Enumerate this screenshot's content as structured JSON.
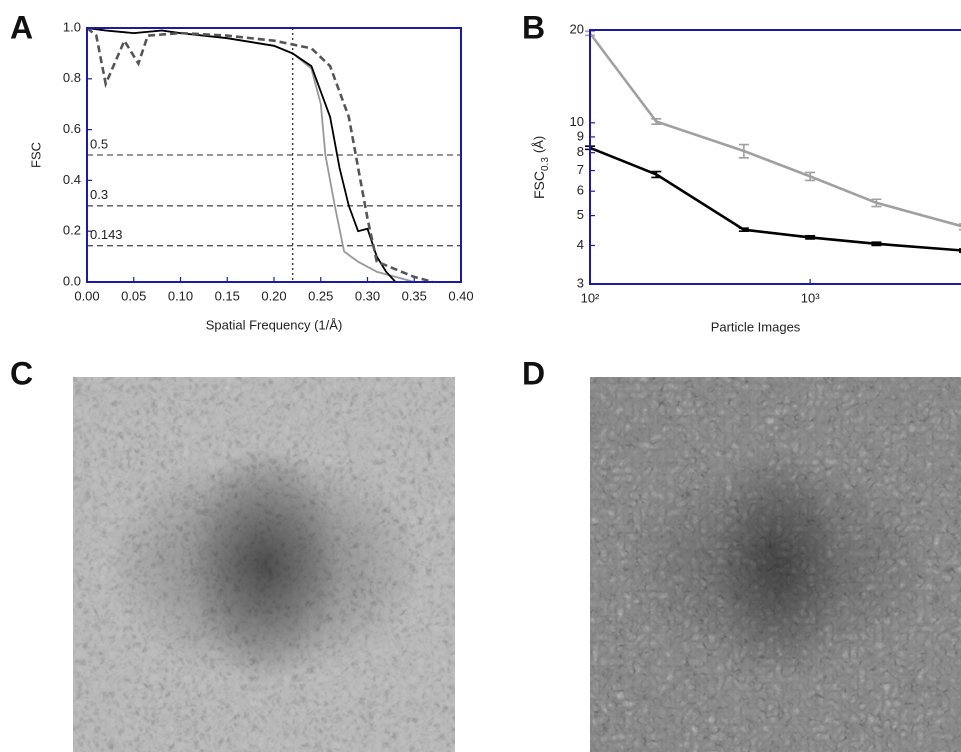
{
  "chart_data": [
    {
      "type": "line",
      "panel_label": "A",
      "x_label": "Spatial Frequency (1/Å)",
      "y_label": "FSC",
      "xlim": [
        0,
        0.4
      ],
      "ylim": [
        0,
        1
      ],
      "xticks": [
        {
          "value": 0,
          "label": "0.00"
        },
        0.05,
        {
          "value": 0.1,
          "label": "0.10"
        },
        0.15,
        {
          "value": 0.2,
          "label": "0.20"
        },
        0.25,
        {
          "value": 0.3,
          "label": "0.30"
        },
        0.35,
        {
          "value": 0.4,
          "label": "0.40"
        }
      ],
      "yticks": [
        {
          "value": 0,
          "label": "0.0"
        },
        0.2,
        0.4,
        0.6,
        0.8,
        {
          "value": 1,
          "label": "1.0"
        }
      ],
      "hlines": [
        0.5,
        0.3,
        0.143
      ],
      "vline": 0.22,
      "series": [
        {
          "color": "#999999",
          "dash": false,
          "x": [
            0,
            0.02,
            0.05,
            0.08,
            0.1,
            0.15,
            0.2,
            0.22,
            0.24,
            0.25,
            0.255,
            0.265,
            0.275,
            0.29,
            0.31,
            0.33,
            0.35
          ],
          "values": [
            1,
            0.99,
            0.98,
            0.99,
            0.98,
            0.96,
            0.93,
            0.9,
            0.84,
            0.7,
            0.5,
            0.3,
            0.12,
            0.08,
            0.04,
            0.02,
            0
          ]
        },
        {
          "color": "#000000",
          "dash": false,
          "x": [
            0,
            0.02,
            0.05,
            0.08,
            0.1,
            0.15,
            0.2,
            0.22,
            0.24,
            0.26,
            0.27,
            0.28,
            0.29,
            0.3,
            0.31,
            0.32,
            0.33
          ],
          "values": [
            1,
            0.99,
            0.98,
            0.99,
            0.98,
            0.96,
            0.93,
            0.9,
            0.85,
            0.65,
            0.45,
            0.3,
            0.2,
            0.21,
            0.1,
            0.04,
            0
          ]
        },
        {
          "color": "#555555",
          "dash": true,
          "x": [
            0,
            0.01,
            0.02,
            0.04,
            0.055,
            0.065,
            0.1,
            0.15,
            0.2,
            0.24,
            0.26,
            0.28,
            0.29,
            0.3,
            0.31,
            0.33,
            0.35,
            0.37
          ],
          "values": [
            1,
            0.97,
            0.78,
            0.95,
            0.86,
            0.97,
            0.98,
            0.97,
            0.95,
            0.92,
            0.85,
            0.65,
            0.45,
            0.25,
            0.08,
            0.05,
            0.02,
            0
          ]
        }
      ]
    },
    {
      "type": "errorline",
      "panel_label": "B",
      "x_label": "Particle Images",
      "y_label": {
        "main": "FSC",
        "sub": "0.3",
        "unit": "(Å)"
      },
      "xscale": "log",
      "yscale": "log",
      "xlim": [
        100,
        5000
      ],
      "ylim": [
        3,
        20
      ],
      "xticks": [
        {
          "value": 100,
          "label": "10²"
        },
        {
          "value": 1000,
          "label": "10³"
        }
      ],
      "yticks": [
        3,
        4,
        5,
        6,
        7,
        8,
        9,
        10,
        20
      ],
      "series": [
        {
          "color": "#a0a0a0",
          "x": [
            100,
            200,
            500,
            1000,
            2000,
            5000
          ],
          "values": [
            19.5,
            10.1,
            8.1,
            6.7,
            5.5,
            4.6
          ],
          "errors": [
            0.3,
            0.2,
            0.4,
            0.2,
            0.15,
            0.1
          ]
        },
        {
          "color": "#000000",
          "x": [
            100,
            200,
            500,
            1000,
            2000,
            5000
          ],
          "values": [
            8.3,
            6.8,
            4.5,
            4.25,
            4.05,
            3.85
          ],
          "errors": [
            0.1,
            0.15,
            0.05,
            0.05,
            0.05,
            0.05
          ]
        }
      ]
    }
  ],
  "images": [
    {
      "panel_label": "C"
    },
    {
      "panel_label": "D"
    }
  ]
}
